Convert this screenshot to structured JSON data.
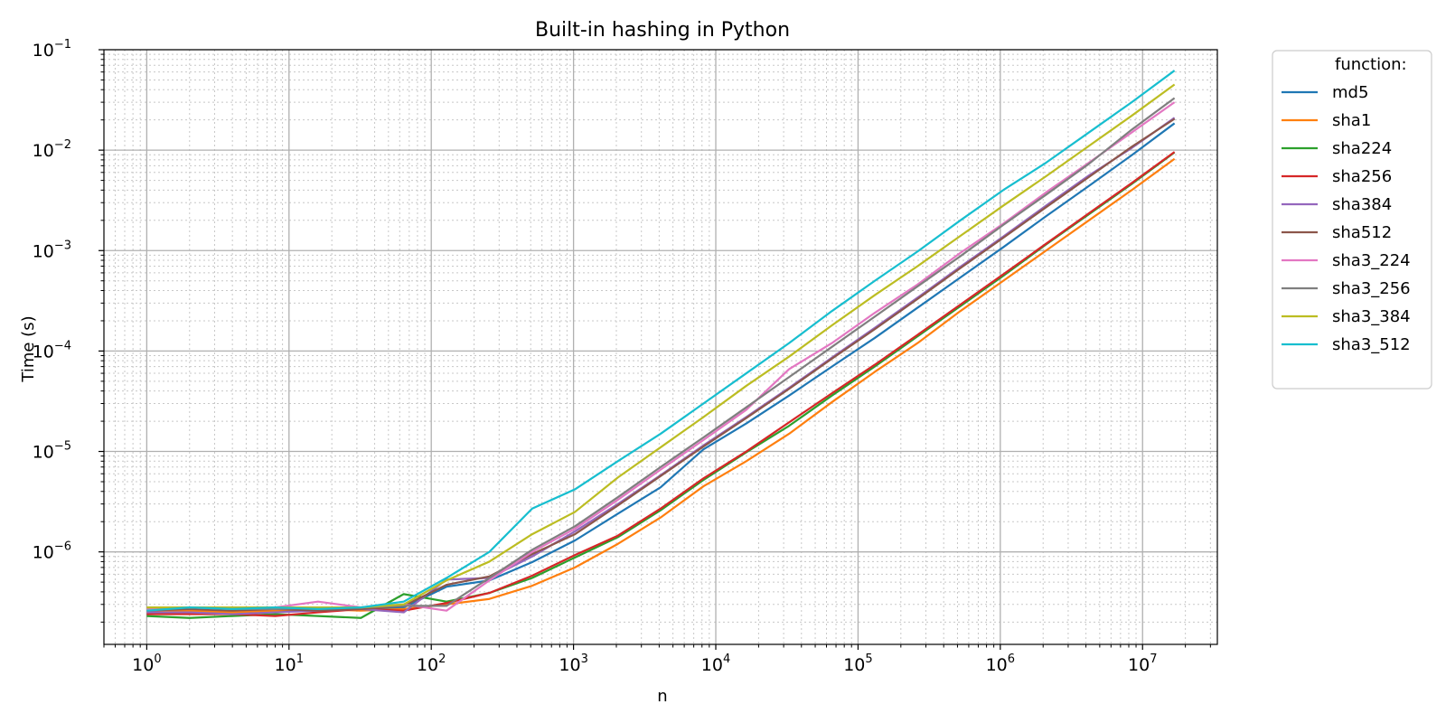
{
  "chart_data": {
    "type": "line",
    "title": "Built-in hashing in Python",
    "xlabel": "n",
    "ylabel": "Time (s)",
    "xscale": "log",
    "yscale": "log",
    "xlim": [
      0.5,
      33554432
    ],
    "ylim": [
      1.2e-07,
      0.1
    ],
    "grid": "major and minor",
    "legend": {
      "title": "function:",
      "placement": "outside-right"
    },
    "x_ticks": [
      {
        "value": 1,
        "base": "10",
        "exp": "0"
      },
      {
        "value": 10,
        "base": "10",
        "exp": "1"
      },
      {
        "value": 100,
        "base": "10",
        "exp": "2"
      },
      {
        "value": 1000,
        "base": "10",
        "exp": "3"
      },
      {
        "value": 10000,
        "base": "10",
        "exp": "4"
      },
      {
        "value": 100000,
        "base": "10",
        "exp": "5"
      },
      {
        "value": 1000000,
        "base": "10",
        "exp": "6"
      },
      {
        "value": 10000000,
        "base": "10",
        "exp": "7"
      }
    ],
    "y_ticks": [
      {
        "value": 1e-06,
        "base": "10",
        "exp": "−6"
      },
      {
        "value": 1e-05,
        "base": "10",
        "exp": "−5"
      },
      {
        "value": 0.0001,
        "base": "10",
        "exp": "−4"
      },
      {
        "value": 0.001,
        "base": "10",
        "exp": "−3"
      },
      {
        "value": 0.01,
        "base": "10",
        "exp": "−2"
      },
      {
        "value": 0.1,
        "base": "10",
        "exp": "−1"
      }
    ],
    "x": [
      1,
      2,
      4,
      8,
      16,
      32,
      64,
      128,
      256,
      512,
      1024,
      2048,
      4096,
      8192,
      16384,
      32768,
      65536,
      131072,
      262144,
      524288,
      1048576,
      2097152,
      4194304,
      8388608,
      16777216
    ],
    "series": [
      {
        "name": "md5",
        "color": "#1f77b4",
        "values": [
          2.4e-07,
          2.5e-07,
          2.4e-07,
          2.6e-07,
          2.6e-07,
          2.7e-07,
          2.8e-07,
          4.5e-07,
          5.2e-07,
          7.9e-07,
          1.3e-06,
          2.4e-06,
          4.4e-06,
          1.05e-05,
          1.9e-05,
          3.6e-05,
          7e-05,
          0.000135,
          0.00027,
          0.00054,
          0.00108,
          0.0022,
          0.0044,
          0.0089,
          0.0185
        ]
      },
      {
        "name": "sha1",
        "color": "#ff7f0e",
        "values": [
          2.5e-07,
          2.6e-07,
          2.5e-07,
          2.6e-07,
          2.7e-07,
          2.6e-07,
          2.7e-07,
          3e-07,
          3.4e-07,
          4.6e-07,
          7e-07,
          1.2e-06,
          2.2e-06,
          4.5e-06,
          8e-06,
          1.5e-05,
          3.1e-05,
          6.2e-05,
          0.00012,
          0.00025,
          0.0005,
          0.001,
          0.002,
          0.004,
          0.0082
        ]
      },
      {
        "name": "sha224",
        "color": "#2ca02c",
        "values": [
          2.3e-07,
          2.2e-07,
          2.3e-07,
          2.4e-07,
          2.3e-07,
          2.2e-07,
          3.8e-07,
          3.2e-07,
          3.9e-07,
          5.5e-07,
          8.8e-07,
          1.4e-06,
          2.6e-06,
          5.2e-06,
          9.8e-06,
          1.8e-05,
          3.6e-05,
          7e-05,
          0.00014,
          0.00028,
          0.00056,
          0.00115,
          0.0023,
          0.0046,
          0.0095
        ]
      },
      {
        "name": "sha256",
        "color": "#d62728",
        "values": [
          2.4e-07,
          2.4e-07,
          2.4e-07,
          2.3e-07,
          2.5e-07,
          2.7e-07,
          2.6e-07,
          3.1e-07,
          3.9e-07,
          5.8e-07,
          9.3e-07,
          1.45e-06,
          2.7e-06,
          5.4e-06,
          1e-05,
          1.95e-05,
          3.8e-05,
          7.3e-05,
          0.000145,
          0.00029,
          0.00058,
          0.00117,
          0.00235,
          0.0047,
          0.0096
        ]
      },
      {
        "name": "sha384",
        "color": "#9467bd",
        "values": [
          2.5e-07,
          2.5e-07,
          2.4e-07,
          2.5e-07,
          2.6e-07,
          2.7e-07,
          2.5e-07,
          5.3e-07,
          5.5e-07,
          9e-07,
          1.6e-06,
          3e-06,
          5.8e-06,
          1.15e-05,
          2.2e-05,
          4.3e-05,
          8.6e-05,
          0.00017,
          0.00034,
          0.00069,
          0.00138,
          0.0028,
          0.0056,
          0.0105,
          0.021
        ]
      },
      {
        "name": "sha512",
        "color": "#8c564b",
        "values": [
          2.6e-07,
          2.7e-07,
          2.6e-07,
          2.7e-07,
          2.6e-07,
          2.7e-07,
          2.9e-07,
          4.7e-07,
          5.7e-07,
          9.5e-07,
          1.5e-06,
          2.9e-06,
          5.7e-06,
          1.12e-05,
          2.15e-05,
          4.2e-05,
          8.4e-05,
          0.000165,
          0.00033,
          0.00067,
          0.00134,
          0.0027,
          0.0054,
          0.0108,
          0.0205
        ]
      },
      {
        "name": "sha3_224",
        "color": "#e377c2",
        "values": [
          2.7e-07,
          2.8e-07,
          2.7e-07,
          2.8e-07,
          3.2e-07,
          2.8e-07,
          3e-07,
          2.6e-07,
          5.2e-07,
          1e-06,
          1.7e-06,
          3.3e-06,
          6.6e-06,
          1.3e-05,
          2.6e-05,
          6.6e-05,
          0.00012,
          0.00024,
          0.00046,
          0.00095,
          0.00185,
          0.0038,
          0.0075,
          0.015,
          0.03
        ]
      },
      {
        "name": "sha3_256",
        "color": "#7f7f7f",
        "values": [
          2.8e-07,
          2.8e-07,
          2.7e-07,
          2.7e-07,
          2.8e-07,
          2.8e-07,
          2.9e-07,
          2.9e-07,
          5.5e-07,
          1.05e-06,
          1.8e-06,
          3.5e-06,
          7e-06,
          1.38e-05,
          2.75e-05,
          5.5e-05,
          0.00011,
          0.00022,
          0.00044,
          0.00088,
          0.0018,
          0.0036,
          0.0073,
          0.016,
          0.033
        ]
      },
      {
        "name": "sha3_384",
        "color": "#bcbd22",
        "values": [
          2.8e-07,
          2.8e-07,
          2.8e-07,
          2.8e-07,
          2.8e-07,
          2.8e-07,
          3e-07,
          5.2e-07,
          8e-07,
          1.5e-06,
          2.5e-06,
          5.5e-06,
          1.1e-05,
          2.2e-05,
          4.5e-05,
          8.8e-05,
          0.00018,
          0.00036,
          0.0007,
          0.0014,
          0.0028,
          0.0055,
          0.011,
          0.022,
          0.045
        ]
      },
      {
        "name": "sha3_512",
        "color": "#17becf",
        "values": [
          2.6e-07,
          2.8e-07,
          2.7e-07,
          2.8e-07,
          2.7e-07,
          2.8e-07,
          3.2e-07,
          5.5e-07,
          1e-06,
          2.7e-06,
          4.2e-06,
          8e-06,
          1.5e-05,
          3e-05,
          6e-05,
          0.00012,
          0.00025,
          0.0005,
          0.00098,
          0.002,
          0.004,
          0.0075,
          0.015,
          0.03,
          0.062
        ]
      }
    ]
  }
}
